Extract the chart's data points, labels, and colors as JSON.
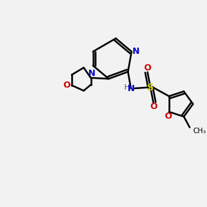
{
  "bg_color": "#f2f2f2",
  "atom_colors": {
    "C": "#000000",
    "N": "#0000cc",
    "O": "#cc0000",
    "S": "#cccc00",
    "H": "#555555"
  },
  "figsize": [
    3.0,
    3.0
  ],
  "dpi": 100
}
